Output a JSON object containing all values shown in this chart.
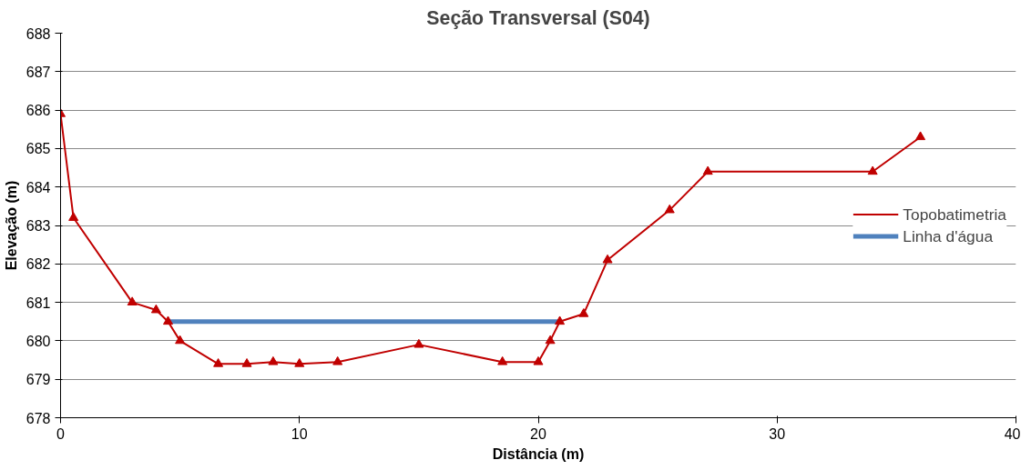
{
  "chart_data": {
    "type": "line",
    "title": "Seção Transversal (S04)",
    "xlabel": "Distância (m)",
    "ylabel": "Elevação (m)",
    "xlim": [
      0,
      40
    ],
    "xticks": [
      0,
      10,
      20,
      30,
      40
    ],
    "ylim": [
      678,
      688
    ],
    "yticks": [
      678,
      679,
      680,
      681,
      682,
      683,
      684,
      685,
      686,
      687,
      688
    ],
    "grid": "y",
    "legend": "right",
    "series": [
      {
        "name": "Topobatimetria",
        "color": "#c00000",
        "marker": "triangle",
        "x": [
          0,
          0.54,
          3.0,
          4.0,
          4.5,
          5.0,
          6.6,
          7.8,
          8.9,
          10,
          11.6,
          15,
          18.5,
          20,
          20.5,
          20.9,
          21.9,
          22.9,
          25.5,
          27.1,
          34,
          36
        ],
        "values": [
          685.9,
          683.2,
          681.0,
          680.8,
          680.5,
          680.0,
          679.4,
          679.4,
          679.45,
          679.4,
          679.45,
          679.9,
          679.45,
          679.45,
          680.0,
          680.5,
          680.7,
          682.1,
          683.4,
          684.4,
          684.4,
          685.3
        ]
      },
      {
        "name": "Linha d'água",
        "color": "#4f81bd",
        "marker": "none",
        "x": [
          4.5,
          21
        ],
        "values": [
          680.5,
          680.5
        ]
      }
    ]
  }
}
